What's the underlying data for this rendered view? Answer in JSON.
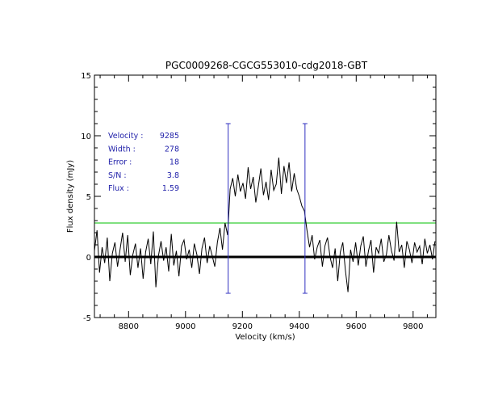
{
  "chart_data": {
    "type": "line",
    "title": "PGC0009268-CGCG553010-cdg2018-GBT",
    "xlabel": "Velocity (km/s)",
    "ylabel": "Flux density (mJy)",
    "xlim": [
      8680,
      9880
    ],
    "ylim": [
      -5,
      15
    ],
    "xticks": [
      8800,
      9000,
      9200,
      9400,
      9600,
      9800
    ],
    "yticks": [
      -5,
      0,
      5,
      10,
      15
    ],
    "grid": false,
    "series": [
      {
        "name": "spectrum",
        "color": "#000000",
        "x": [
          8680,
          8689,
          8698,
          8707,
          8716,
          8725,
          8734,
          8743,
          8752,
          8761,
          8770,
          8779,
          8788,
          8797,
          8806,
          8815,
          8824,
          8833,
          8842,
          8851,
          8860,
          8869,
          8878,
          8887,
          8896,
          8905,
          8914,
          8923,
          8932,
          8941,
          8950,
          8959,
          8968,
          8977,
          8986,
          8995,
          9004,
          9013,
          9022,
          9031,
          9040,
          9049,
          9058,
          9067,
          9076,
          9085,
          9094,
          9103,
          9112,
          9121,
          9130,
          9139,
          9148,
          9157,
          9166,
          9175,
          9184,
          9193,
          9202,
          9211,
          9220,
          9229,
          9238,
          9247,
          9256,
          9265,
          9274,
          9283,
          9292,
          9301,
          9310,
          9319,
          9328,
          9337,
          9346,
          9355,
          9364,
          9373,
          9382,
          9391,
          9400,
          9409,
          9418,
          9427,
          9436,
          9445,
          9454,
          9463,
          9472,
          9481,
          9490,
          9499,
          9508,
          9517,
          9526,
          9535,
          9544,
          9553,
          9562,
          9571,
          9580,
          9589,
          9598,
          9607,
          9616,
          9625,
          9634,
          9643,
          9652,
          9661,
          9670,
          9679,
          9688,
          9697,
          9706,
          9715,
          9724,
          9733,
          9742,
          9751,
          9760,
          9769,
          9778,
          9787,
          9796,
          9805,
          9814,
          9823,
          9832,
          9841,
          9850,
          9859,
          9868,
          9877
        ],
        "y": [
          0.5,
          2.2,
          -1.3,
          0.8,
          -0.5,
          1.6,
          -2.0,
          0.3,
          1.2,
          -0.8,
          0.6,
          2.0,
          -0.4,
          1.8,
          -1.5,
          0.2,
          1.1,
          -0.9,
          0.7,
          -1.8,
          0.4,
          1.5,
          -0.6,
          2.1,
          -2.5,
          0.1,
          1.3,
          -0.3,
          0.8,
          -1.2,
          1.9,
          -0.7,
          0.5,
          -1.6,
          0.9,
          1.4,
          -0.2,
          0.6,
          -0.9,
          1.1,
          0.2,
          -1.4,
          0.7,
          1.6,
          -0.5,
          0.9,
          0.1,
          -0.8,
          1.2,
          2.4,
          0.6,
          2.8,
          1.8,
          5.6,
          6.5,
          5.0,
          6.8,
          5.4,
          6.1,
          4.8,
          7.4,
          5.6,
          6.6,
          4.5,
          5.8,
          7.3,
          5.1,
          6.2,
          4.7,
          7.2,
          5.5,
          6.0,
          8.2,
          5.2,
          7.5,
          6.1,
          7.8,
          5.4,
          6.9,
          5.6,
          5.0,
          4.2,
          3.8,
          2.2,
          0.8,
          1.8,
          -0.2,
          0.8,
          1.4,
          -0.8,
          0.9,
          1.6,
          0.0,
          -0.9,
          0.7,
          -2.0,
          0.4,
          1.2,
          -1.1,
          -2.9,
          0.6,
          -0.4,
          1.2,
          -0.7,
          0.9,
          1.7,
          -0.8,
          0.5,
          1.4,
          -1.3,
          0.8,
          0.3,
          1.5,
          -0.4,
          0.2,
          1.8,
          0.5,
          -0.3,
          2.9,
          0.4,
          1.0,
          -0.9,
          1.3,
          0.6,
          -0.5,
          1.2,
          0.4,
          0.9,
          -0.6,
          1.5,
          0.3,
          1.0,
          -0.2,
          1.3
        ]
      }
    ],
    "baseline": {
      "value": 0,
      "color": "#000000"
    },
    "threshold": {
      "value": 2.8,
      "color": "#00c000"
    },
    "markers": [
      {
        "x": 9150,
        "ymin": -3,
        "ymax": 11,
        "color": "#3030c0"
      },
      {
        "x": 9420,
        "ymin": -3,
        "ymax": 11,
        "color": "#3030c0"
      }
    ],
    "annotations": {
      "color": "#2222aa",
      "rows": [
        {
          "label": "Velocity :",
          "value": "9285"
        },
        {
          "label": "Width :",
          "value": "278"
        },
        {
          "label": "Error :",
          "value": "18"
        },
        {
          "label": "S/N :",
          "value": "3.8"
        },
        {
          "label": "Flux :",
          "value": "1.59"
        }
      ]
    }
  }
}
